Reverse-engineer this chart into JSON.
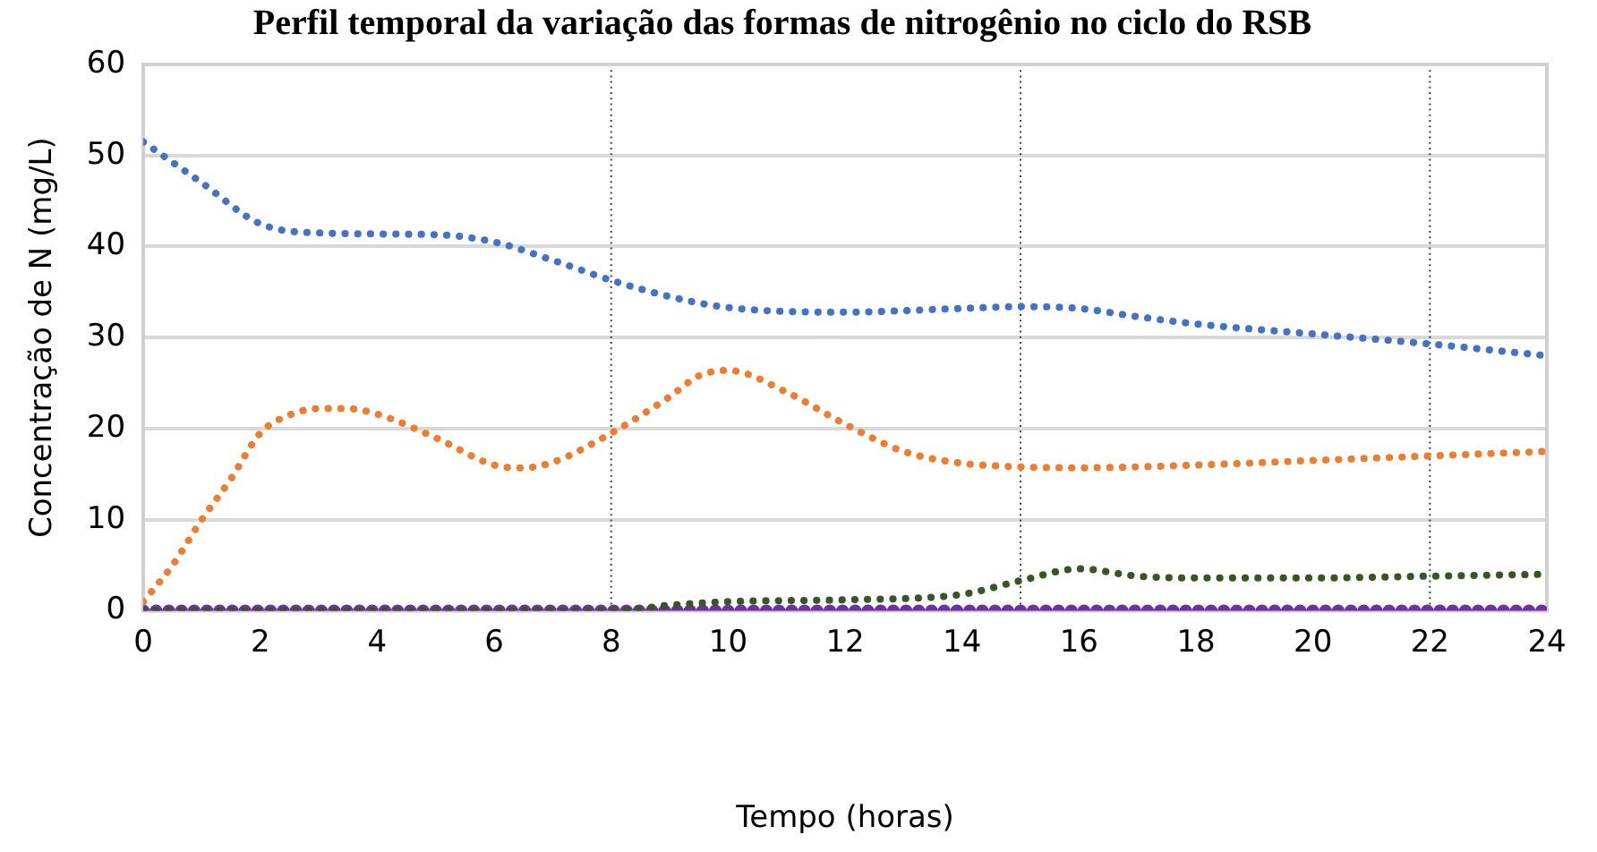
{
  "chart_data": {
    "type": "line",
    "title": "Perfil temporal da variação das formas de nitrogênio no ciclo do RSB",
    "xlabel": "Tempo (horas)",
    "ylabel": "Concentração de N (mg/L)",
    "series": [
      {
        "color": "#4472c4",
        "x": [
          0,
          1,
          2,
          3,
          5,
          6,
          7,
          8,
          9,
          10,
          12,
          14,
          15,
          16,
          17,
          18,
          20,
          22,
          24
        ],
        "values": [
          51.5,
          47,
          42.5,
          41.5,
          41.3,
          40.5,
          38.5,
          36.3,
          34.5,
          33.3,
          32.8,
          33.2,
          33.4,
          33.2,
          32.3,
          31.5,
          30.4,
          29.3,
          28
        ]
      },
      {
        "color": "#ed7d31",
        "x": [
          0,
          0.5,
          1,
          1.5,
          2,
          2.5,
          3,
          3.5,
          4,
          5,
          6,
          6.5,
          7,
          8,
          9,
          9.5,
          10,
          11,
          12,
          13,
          14,
          15,
          16,
          18,
          20,
          22,
          24
        ],
        "values": [
          1,
          5,
          10,
          14.5,
          19.5,
          21.5,
          22.2,
          22.2,
          21.6,
          19,
          16,
          15.7,
          16.3,
          19.5,
          23.5,
          25.8,
          26.4,
          24,
          20.5,
          17.5,
          16.2,
          15.8,
          15.7,
          16,
          16.5,
          17,
          17.5
        ]
      },
      {
        "color": "#375623",
        "x": [
          0,
          8,
          9,
          10,
          12,
          14,
          15,
          16,
          17,
          18,
          20,
          22,
          24
        ],
        "values": [
          0,
          0,
          0.6,
          1,
          1.2,
          1.8,
          3.3,
          4.6,
          3.8,
          3.6,
          3.6,
          3.8,
          4
        ]
      },
      {
        "color": "#7030a0",
        "x": [
          0,
          24
        ],
        "values": [
          0,
          0
        ]
      }
    ],
    "xlim": [
      0,
      24
    ],
    "xticks": [
      0,
      2,
      4,
      6,
      8,
      10,
      12,
      14,
      16,
      18,
      20,
      22,
      24
    ],
    "ylim": [
      0,
      60
    ],
    "yticks": [
      0,
      10,
      20,
      30,
      40,
      50,
      60
    ],
    "ref_lines": [
      {
        "axis": "x",
        "value": 8,
        "color": "#404040",
        "line_style": "dotted"
      },
      {
        "axis": "x",
        "value": 15,
        "color": "#404040",
        "line_style": "dotted"
      },
      {
        "axis": "x",
        "value": 22,
        "color": "#404040",
        "line_style": "dotted"
      }
    ],
    "grid": "y",
    "legend": false,
    "marker": "none",
    "line_style": "dotted"
  }
}
